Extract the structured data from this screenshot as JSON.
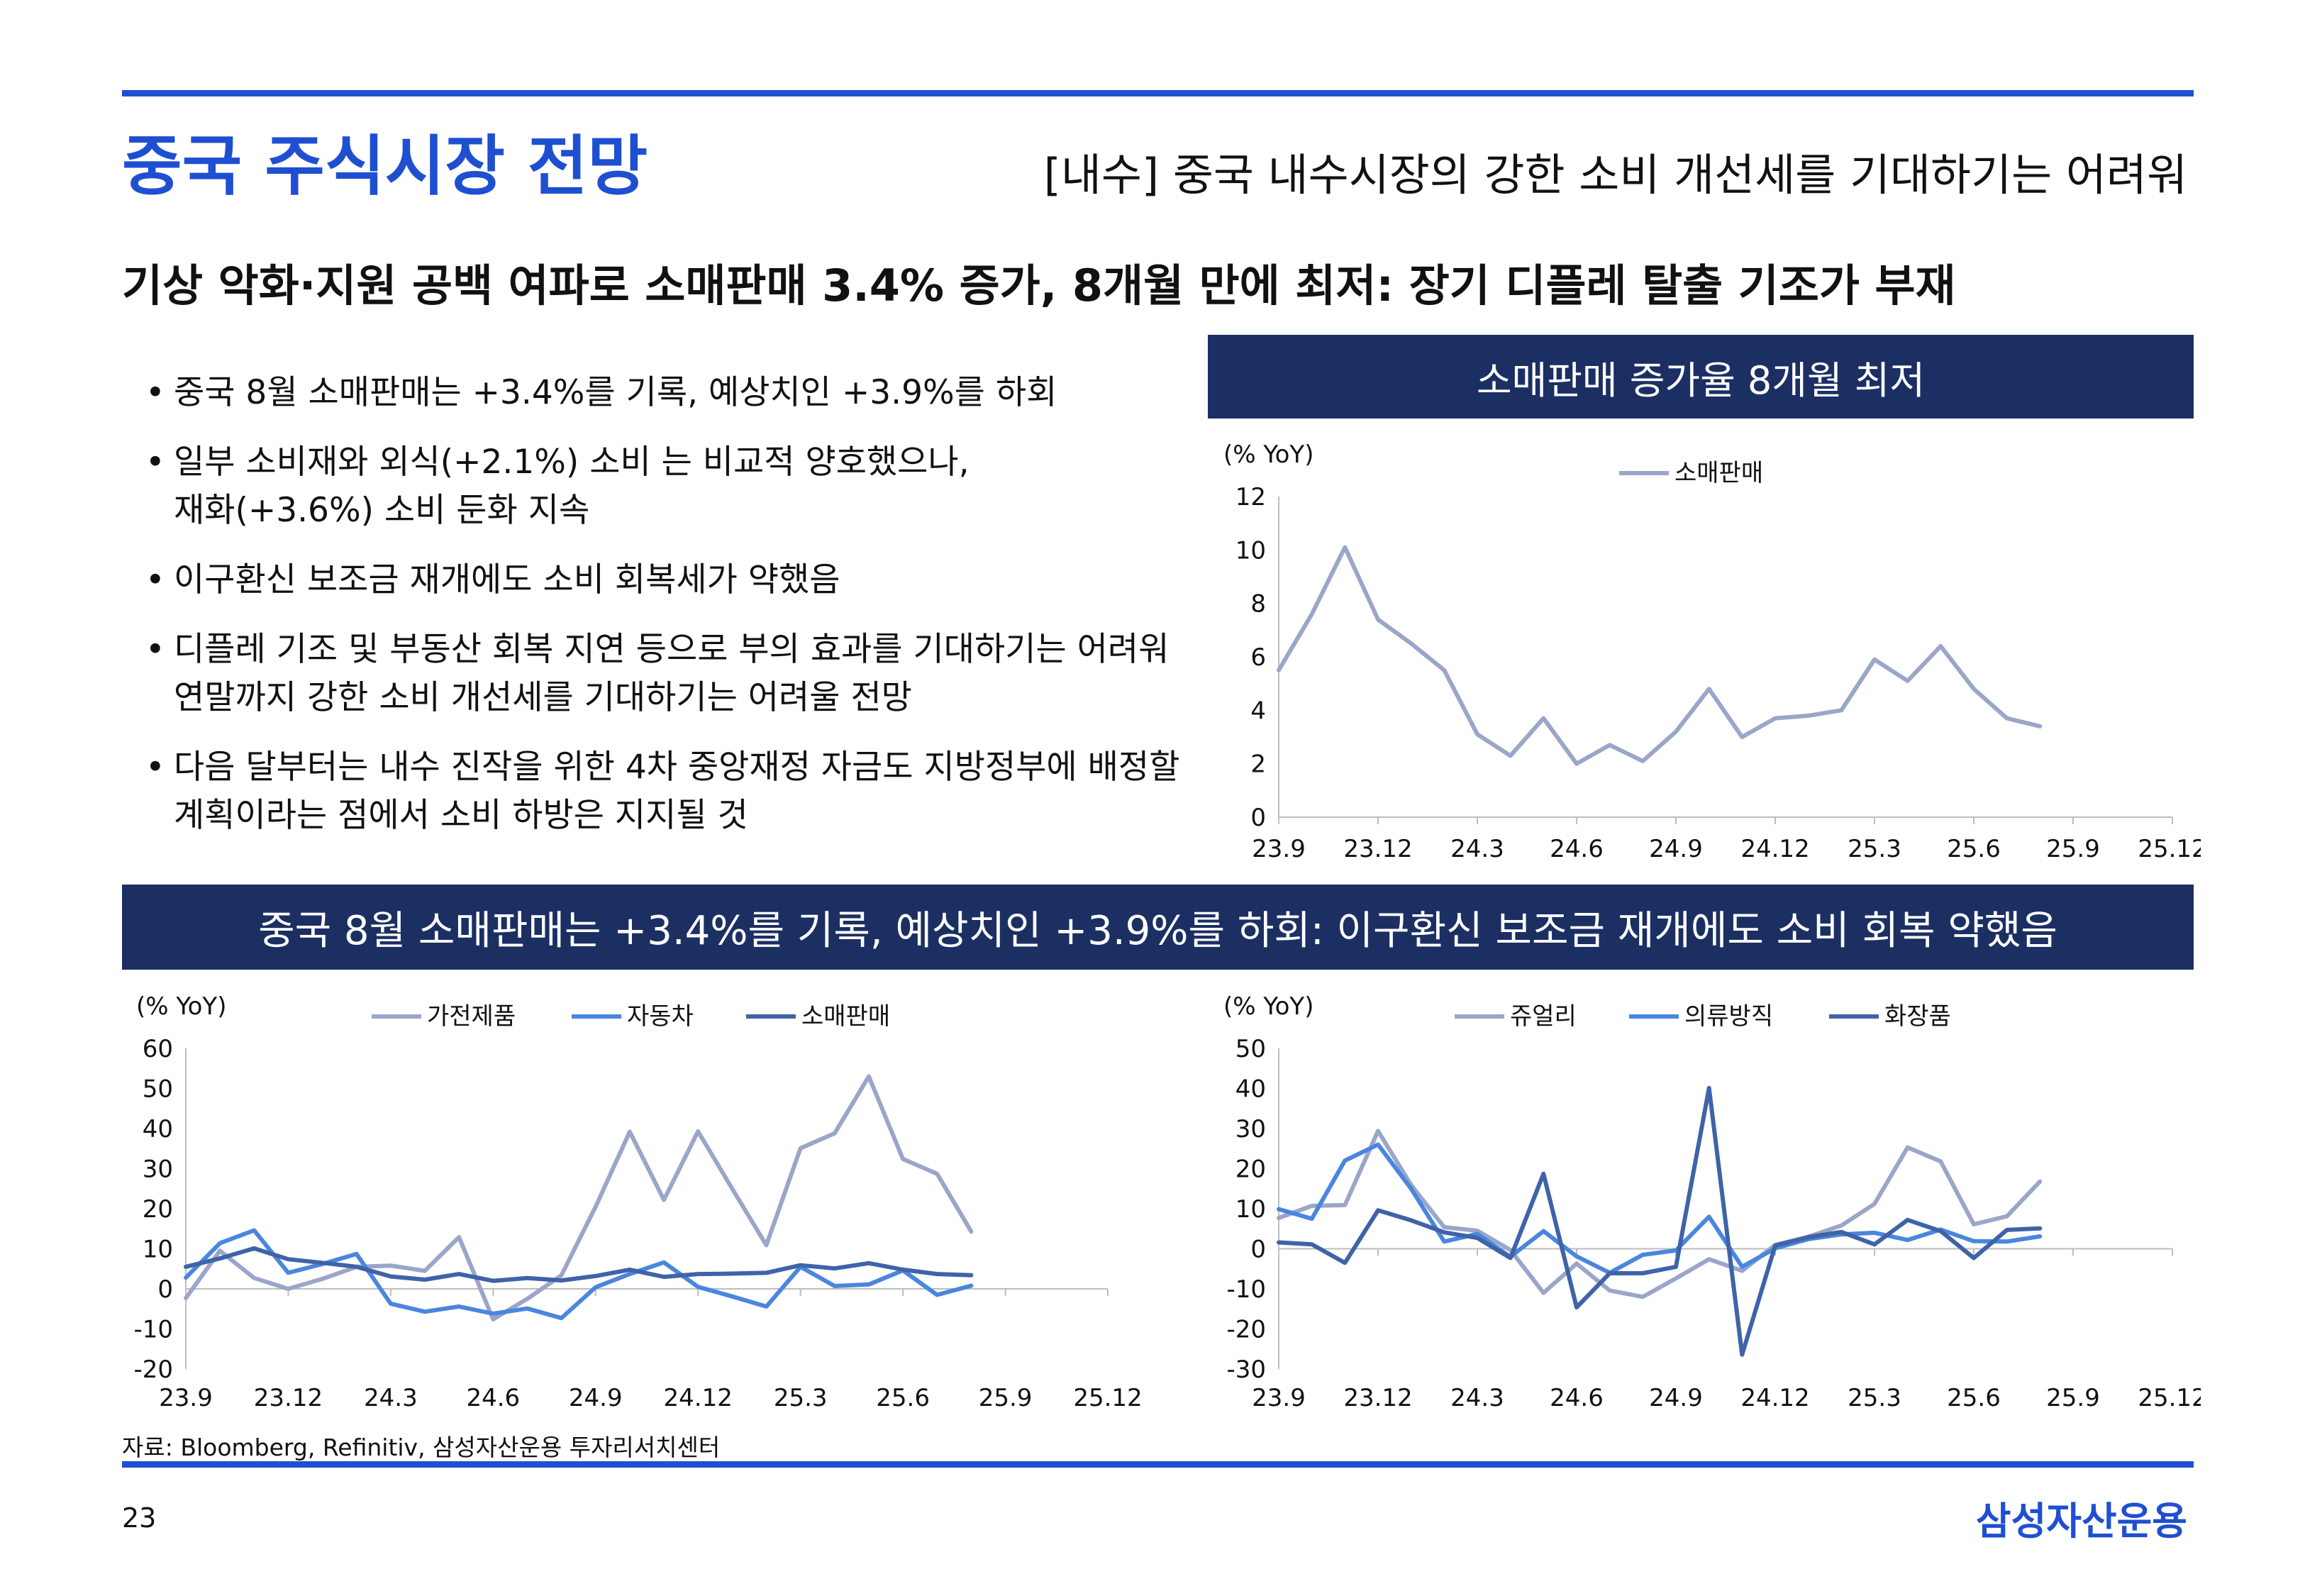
{
  "header": {
    "title": "중국 주식시장 전망",
    "section": "[내수] 중국 내수시장의 강한 소비 개선세를 기대하기는 어려워"
  },
  "headline": "기상 악화·지원 공백 여파로 소매판매 3.4% 증가, 8개월 만에 최저: 장기 디플레 탈출 기조가 부재",
  "bullets": [
    [
      "중국 8월 소매판매는 +3.4%를 기록, 예상치인 +3.9%를 하회"
    ],
    [
      "일부 소비재와 외식(+2.1%) 소비 는 비교적 양호했으나,",
      "재화(+3.6%) 소비 둔화 지속"
    ],
    [
      "이구환신 보조금 재개에도 소비 회복세가 약했음"
    ],
    [
      "디플레 기조 및 부동산 회복 지연 등으로 부의 효과를 기대하기는 어려워",
      "연말까지 강한 소비 개선세를 기대하기는 어려울 전망"
    ],
    [
      "다음 달부터는 내수 진작을 위한 4차 중앙재정 자금도 지방정부에 배정할",
      "계획이라는 점에서 소비 하방은 지지될 것"
    ]
  ],
  "colors": {
    "brand_blue": "#1f4fd1",
    "banner_navy": "#1c2f63",
    "series_light": "#9aa6c9",
    "series_mid": "#4a86de",
    "series_dark": "#3f63a8"
  },
  "chart_data": [
    {
      "type": "line",
      "banner": "소매판매 증가율 8개월 최저",
      "ylabel": "(% YoY)",
      "ylim": [
        0,
        12
      ],
      "yticks": [
        "0",
        "2",
        "4",
        "6",
        "8",
        "10",
        "12"
      ],
      "xticks": [
        "23.9",
        "23.12",
        "24.3",
        "24.6",
        "24.9",
        "24.12",
        "25.3",
        "25.6",
        "25.9",
        "25.12"
      ],
      "n_periods": 28,
      "legend_position": "top",
      "series": [
        {
          "name": "소매판매",
          "color": "#9aa6c9",
          "values": [
            5.5,
            7.6,
            10.1,
            7.4,
            6.5,
            5.5,
            3.1,
            2.3,
            3.7,
            2.0,
            2.7,
            2.1,
            3.2,
            4.8,
            3.0,
            3.7,
            3.8,
            4.0,
            5.9,
            5.1,
            6.4,
            4.8,
            3.7,
            3.4
          ]
        }
      ]
    },
    {
      "type": "line",
      "ylabel": "(% YoY)",
      "ylim": [
        -20,
        60
      ],
      "yticks": [
        "-20",
        "-10",
        "0",
        "10",
        "20",
        "30",
        "40",
        "50",
        "60"
      ],
      "xticks": [
        "23.9",
        "23.12",
        "24.3",
        "24.6",
        "24.9",
        "24.12",
        "25.3",
        "25.6",
        "25.9",
        "25.12"
      ],
      "n_periods": 28,
      "legend_position": "top",
      "series": [
        {
          "name": "가전제품",
          "color": "#9aa6c9",
          "values": [
            -2.3,
            9.5,
            2.7,
            0.0,
            2.5,
            5.5,
            5.8,
            4.5,
            12.9,
            -7.6,
            -2.5,
            3.4,
            20.5,
            39.2,
            22.2,
            39.3,
            25.0,
            10.9,
            35.1,
            38.8,
            53.0,
            32.4,
            28.7,
            14.3
          ]
        },
        {
          "name": "자동차",
          "color": "#4a86de",
          "values": [
            2.8,
            11.4,
            14.6,
            4.0,
            6.2,
            8.7,
            -3.7,
            -5.7,
            -4.4,
            -6.2,
            -4.9,
            -7.3,
            0.4,
            3.7,
            6.6,
            0.5,
            -1.9,
            -4.4,
            5.5,
            0.7,
            1.1,
            4.6,
            -1.5,
            0.8
          ]
        },
        {
          "name": "소매판매",
          "color": "#3f63a8",
          "values": [
            5.5,
            7.6,
            10.1,
            7.4,
            6.5,
            5.5,
            3.1,
            2.3,
            3.7,
            2.0,
            2.7,
            2.1,
            3.2,
            4.8,
            3.0,
            3.7,
            3.8,
            4.0,
            5.9,
            5.1,
            6.4,
            4.8,
            3.7,
            3.4
          ]
        }
      ]
    },
    {
      "type": "line",
      "ylabel": "(% YoY)",
      "ylim": [
        -30,
        50
      ],
      "yticks": [
        "-30",
        "-20",
        "-10",
        "0",
        "10",
        "20",
        "30",
        "40",
        "50"
      ],
      "xticks": [
        "23.9",
        "23.12",
        "24.3",
        "24.6",
        "24.9",
        "24.12",
        "25.3",
        "25.6",
        "25.9",
        "25.12"
      ],
      "n_periods": 28,
      "legend_position": "top",
      "series": [
        {
          "name": "쥬얼리",
          "color": "#9aa6c9",
          "values": [
            7.7,
            10.7,
            10.9,
            29.4,
            15.9,
            5.4,
            4.5,
            -0.3,
            -11.0,
            -3.7,
            -10.4,
            -12.0,
            -7.4,
            -2.6,
            -5.5,
            1.0,
            3.0,
            5.8,
            11.2,
            25.3,
            21.8,
            6.1,
            8.1,
            16.8
          ]
        },
        {
          "name": "의류방직",
          "color": "#4a86de",
          "values": [
            9.9,
            7.5,
            22.0,
            26.0,
            15.0,
            1.8,
            3.7,
            -2.0,
            4.4,
            -1.9,
            -6.0,
            -1.5,
            -0.4,
            8.0,
            -4.5,
            0.1,
            2.4,
            3.6,
            4.0,
            2.2,
            4.8,
            1.9,
            1.8,
            3.1
          ]
        },
        {
          "name": "화장품",
          "color": "#3f63a8",
          "values": [
            1.6,
            1.1,
            -3.5,
            9.6,
            7.1,
            4.1,
            2.7,
            -2.3,
            18.7,
            -14.6,
            -6.1,
            -6.1,
            -4.5,
            40.1,
            -26.4,
            0.8,
            2.9,
            4.2,
            1.1,
            7.2,
            4.4,
            -2.3,
            4.7,
            5.1
          ]
        }
      ]
    }
  ],
  "chart2_banner": "중국 8월 소매판매는 +3.4%를 기록, 예상치인 +3.9%를 하회: 이구환신 보조금 재개에도 소비 회복 약했음",
  "footer": {
    "source": "자료: Bloomberg, Refinitiv, 삼성자산운용 투자리서치센터",
    "page_number": "23",
    "brand": "삼성자산운용"
  }
}
